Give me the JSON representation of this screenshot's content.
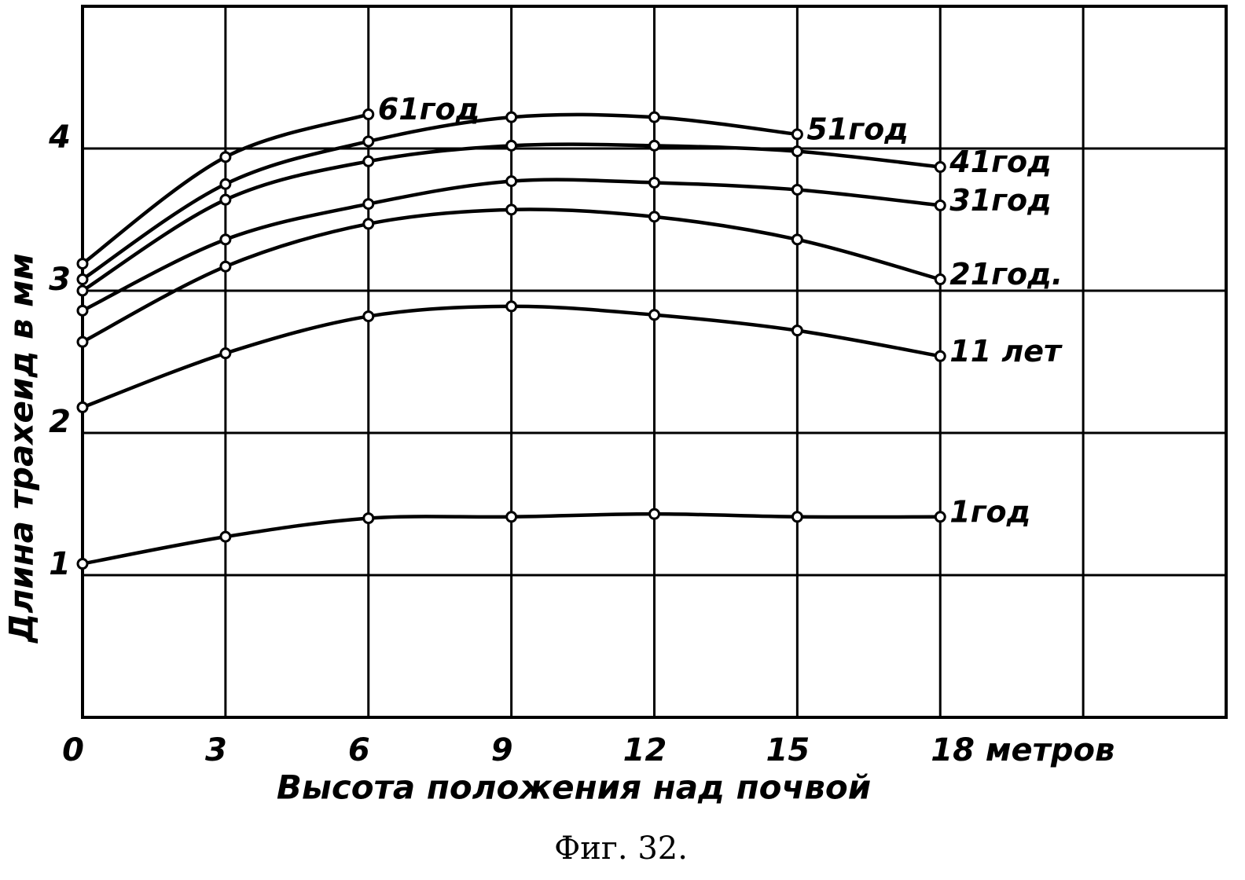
{
  "chart_data": {
    "type": "line",
    "xlabel": "Высота положения над почвой",
    "ylabel": "Длина трахеид в мм",
    "caption": "Фиг. 32.",
    "x": [
      0,
      3,
      6,
      9,
      12,
      15,
      18
    ],
    "xlim": [
      0,
      24
    ],
    "xticks": [
      0,
      3,
      6,
      9,
      12,
      15,
      {
        "value": 18,
        "label": "18 метров"
      },
      {
        "value": 21,
        "label": null
      }
    ],
    "ylim": [
      0,
      5
    ],
    "yticks": [
      1,
      2,
      3,
      4
    ],
    "grid": true,
    "series": [
      {
        "name": "1год",
        "color": "#000000",
        "values": [
          1.08,
          1.27,
          1.4,
          1.41,
          1.43,
          1.41,
          1.41
        ]
      },
      {
        "name": "11 лет",
        "color": "#000000",
        "values": [
          2.18,
          2.56,
          2.82,
          2.89,
          2.83,
          2.72,
          2.54
        ]
      },
      {
        "name": "21год.",
        "color": "#000000",
        "values": [
          2.64,
          3.17,
          3.47,
          3.57,
          3.52,
          3.36,
          3.08
        ]
      },
      {
        "name": "31год",
        "color": "#000000",
        "values": [
          2.86,
          3.36,
          3.61,
          3.77,
          3.76,
          3.71,
          3.6
        ]
      },
      {
        "name": "41год",
        "color": "#000000",
        "values": [
          3.0,
          3.64,
          3.91,
          4.02,
          4.02,
          3.98,
          3.87
        ]
      },
      {
        "name": "51год",
        "color": "#000000",
        "values": [
          3.08,
          3.75,
          4.05,
          4.22,
          4.22,
          4.1,
          null
        ]
      },
      {
        "name": "61год",
        "color": "#000000",
        "values": [
          3.19,
          3.94,
          4.24,
          null,
          null,
          null,
          null
        ]
      }
    ]
  }
}
